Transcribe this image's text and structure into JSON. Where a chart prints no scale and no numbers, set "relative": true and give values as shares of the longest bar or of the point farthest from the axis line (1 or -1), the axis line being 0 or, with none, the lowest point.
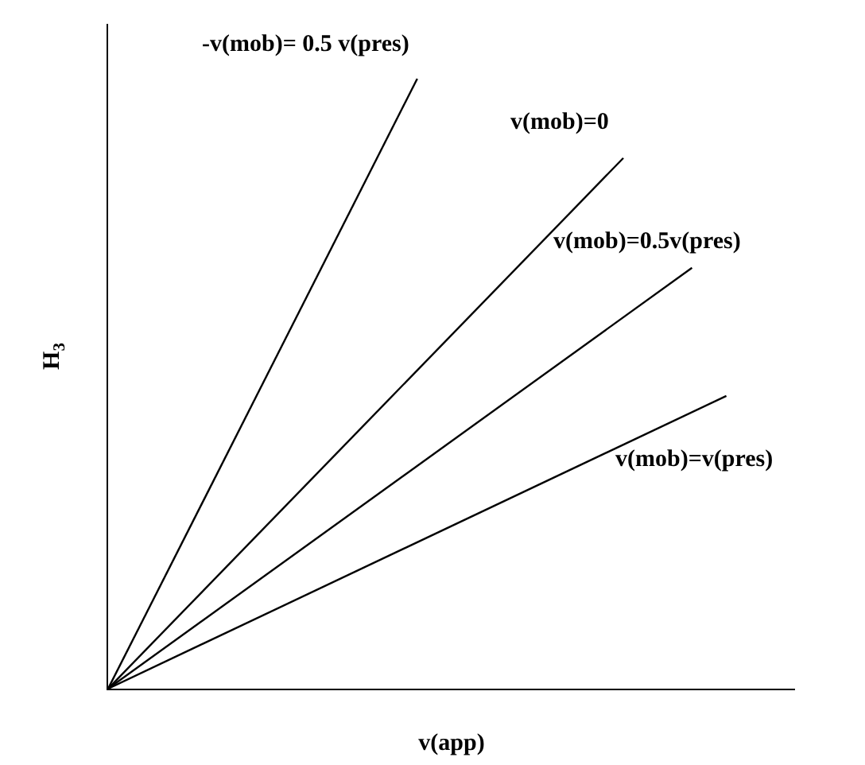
{
  "chart_data": {
    "type": "line",
    "relative": true,
    "xlabel": "v(app)",
    "ylabel": "H$_{3}$",
    "legend": false,
    "marker": "none",
    "line_style": "solid",
    "categories": [
      null,
      null,
      null,
      null,
      null,
      null,
      null,
      null,
      null,
      null,
      null,
      null,
      null,
      null,
      null,
      null,
      null,
      null,
      null,
      null,
      null
    ],
    "series": [
      {
        "name": "-v(mob)= 0.5 v(pres)",
        "color": "#000000",
        "values": [
          0,
          null,
          null,
          null,
          null,
          null,
          null,
          null,
          null,
          1,
          null,
          null,
          null,
          null,
          null,
          null,
          null,
          null,
          null,
          null,
          null
        ]
      },
      {
        "name": "v(mob)=0",
        "color": "#000000",
        "values": [
          0,
          null,
          null,
          null,
          null,
          null,
          null,
          null,
          null,
          null,
          null,
          null,
          null,
          null,
          null,
          0.87,
          null,
          null,
          null,
          null,
          null
        ]
      },
      {
        "name": "v(mob)=0.5v(pres)",
        "color": "#000000",
        "values": [
          0,
          null,
          null,
          null,
          null,
          null,
          null,
          null,
          null,
          null,
          null,
          null,
          null,
          null,
          null,
          null,
          null,
          0.69,
          null,
          null,
          null
        ]
      },
      {
        "name": "v(mob)=v(pres)",
        "color": "#000000",
        "values": [
          0,
          null,
          null,
          null,
          null,
          null,
          null,
          null,
          null,
          null,
          null,
          null,
          null,
          null,
          null,
          null,
          null,
          null,
          0.48,
          null,
          null
        ]
      }
    ]
  }
}
